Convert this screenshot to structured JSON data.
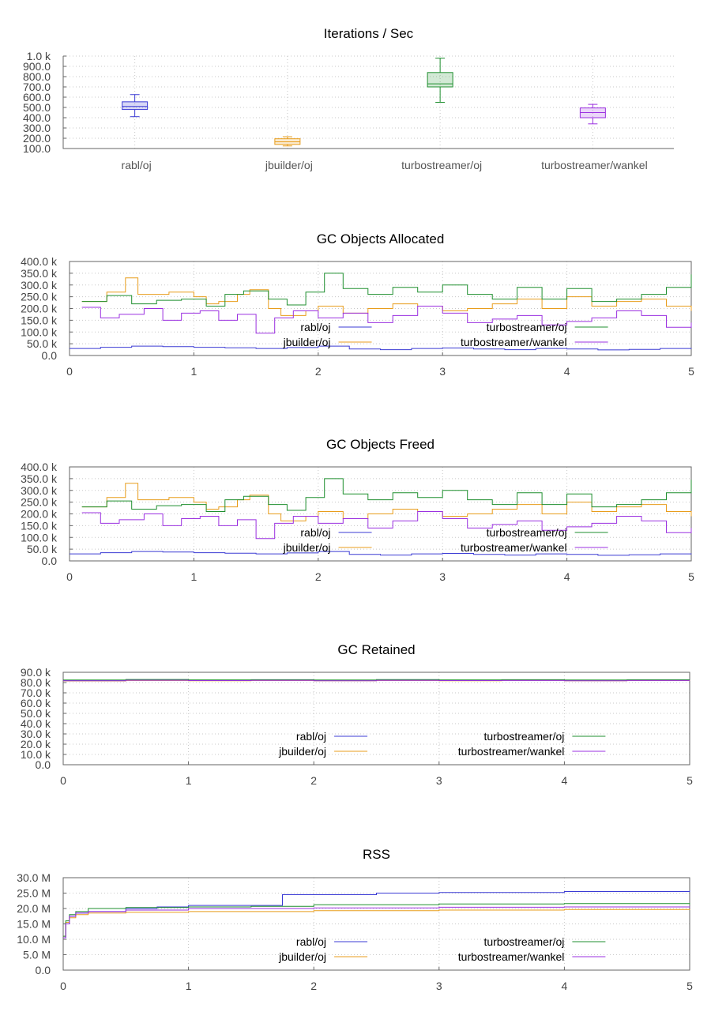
{
  "colors": {
    "rabl/oj": "#3b3bd4",
    "jbuilder/oj": "#e89d1c",
    "turbostreamer/oj": "#1f8f2f",
    "turbostreamer/wankel": "#9b30e0"
  },
  "chart_data": [
    {
      "type": "box",
      "title": "Iterations / Sec",
      "categories": [
        "rabl/oj",
        "jbuilder/oj",
        "turbostreamer/oj",
        "turbostreamer/wankel"
      ],
      "boxes": [
        {
          "name": "rabl/oj",
          "min": 410,
          "q1": 480,
          "median": 510,
          "q3": 555,
          "max": 625
        },
        {
          "name": "jbuilder/oj",
          "min": 125,
          "q1": 140,
          "median": 165,
          "q3": 195,
          "max": 215
        },
        {
          "name": "turbostreamer/oj",
          "min": 550,
          "q1": 700,
          "median": 730,
          "q3": 840,
          "max": 980
        },
        {
          "name": "turbostreamer/wankel",
          "min": 340,
          "q1": 400,
          "median": 450,
          "q3": 495,
          "max": 530
        }
      ],
      "ylim": [
        100,
        1000
      ],
      "yticks": [
        "100.0",
        "200.0",
        "300.0",
        "400.0",
        "500.0",
        "600.0",
        "700.0",
        "800.0",
        "900.0",
        "1.0 k"
      ],
      "ytick_values": [
        100,
        200,
        300,
        400,
        500,
        600,
        700,
        800,
        900,
        1000
      ]
    },
    {
      "type": "line",
      "title": "GC Objects Allocated",
      "xlim": [
        0,
        5
      ],
      "xticks": [
        "0",
        "1",
        "2",
        "3",
        "4",
        "5"
      ],
      "ylim": [
        0,
        400000
      ],
      "yticks": [
        "0.0",
        "50.0 k",
        "100.0 k",
        "150.0 k",
        "200.0 k",
        "250.0 k",
        "300.0 k",
        "350.0 k",
        "400.0 k"
      ],
      "ytick_values": [
        0,
        50000,
        100000,
        150000,
        200000,
        250000,
        300000,
        350000,
        400000
      ],
      "legend": [
        "rabl/oj",
        "turbostreamer/oj",
        "jbuilder/oj",
        "turbostreamer/wankel"
      ],
      "series": [
        {
          "name": "rabl/oj",
          "x": [
            0,
            0.25,
            0.5,
            0.75,
            1,
            1.25,
            1.5,
            1.75,
            2,
            2.25,
            2.5,
            2.75,
            3,
            3.25,
            3.5,
            3.75,
            4,
            4.25,
            4.5,
            4.75,
            5
          ],
          "y": [
            30000,
            35000,
            40000,
            38000,
            35000,
            33000,
            30000,
            34000,
            40000,
            28000,
            25000,
            30000,
            32000,
            28000,
            25000,
            30000,
            28000,
            24000,
            26000,
            30000,
            32000
          ]
        },
        {
          "name": "jbuilder/oj",
          "x": [
            0.1,
            0.3,
            0.45,
            0.55,
            0.8,
            1.0,
            1.1,
            1.2,
            1.35,
            1.45,
            1.6,
            1.7,
            1.9,
            2.0,
            2.2,
            2.4,
            2.6,
            2.8,
            3.0,
            3.2,
            3.4,
            3.6,
            3.8,
            4.0,
            4.2,
            4.4,
            4.6,
            4.8,
            5.0
          ],
          "y": [
            230000,
            270000,
            330000,
            260000,
            270000,
            250000,
            220000,
            230000,
            260000,
            280000,
            200000,
            170000,
            190000,
            210000,
            180000,
            200000,
            220000,
            210000,
            190000,
            200000,
            220000,
            240000,
            200000,
            250000,
            210000,
            230000,
            240000,
            210000,
            190000
          ]
        },
        {
          "name": "turbostreamer/oj",
          "x": [
            0.1,
            0.3,
            0.5,
            0.7,
            0.9,
            1.1,
            1.25,
            1.4,
            1.6,
            1.75,
            1.9,
            2.05,
            2.2,
            2.4,
            2.6,
            2.8,
            3.0,
            3.2,
            3.4,
            3.6,
            3.8,
            4.0,
            4.2,
            4.4,
            4.6,
            4.8,
            5.0
          ],
          "y": [
            230000,
            255000,
            220000,
            235000,
            240000,
            210000,
            260000,
            275000,
            240000,
            215000,
            270000,
            350000,
            285000,
            260000,
            290000,
            270000,
            300000,
            260000,
            240000,
            290000,
            240000,
            285000,
            230000,
            240000,
            260000,
            290000,
            345000
          ]
        },
        {
          "name": "turbostreamer/wankel",
          "x": [
            0.1,
            0.25,
            0.4,
            0.6,
            0.75,
            0.9,
            1.05,
            1.2,
            1.35,
            1.5,
            1.65,
            1.8,
            2.0,
            2.2,
            2.4,
            2.6,
            2.8,
            3.0,
            3.2,
            3.4,
            3.6,
            3.8,
            4.0,
            4.2,
            4.4,
            4.6,
            4.8,
            5.0
          ],
          "y": [
            205000,
            160000,
            175000,
            200000,
            150000,
            180000,
            190000,
            150000,
            175000,
            95000,
            160000,
            190000,
            160000,
            180000,
            140000,
            170000,
            210000,
            180000,
            140000,
            155000,
            170000,
            130000,
            145000,
            160000,
            190000,
            170000,
            120000,
            140000
          ]
        }
      ]
    },
    {
      "type": "line",
      "title": "GC Objects Freed",
      "xlim": [
        0,
        5
      ],
      "xticks": [
        "0",
        "1",
        "2",
        "3",
        "4",
        "5"
      ],
      "ylim": [
        0,
        400000
      ],
      "yticks": [
        "0.0",
        "50.0 k",
        "100.0 k",
        "150.0 k",
        "200.0 k",
        "250.0 k",
        "300.0 k",
        "350.0 k",
        "400.0 k"
      ],
      "ytick_values": [
        0,
        50000,
        100000,
        150000,
        200000,
        250000,
        300000,
        350000,
        400000
      ],
      "legend": [
        "rabl/oj",
        "turbostreamer/oj",
        "jbuilder/oj",
        "turbostreamer/wankel"
      ],
      "series": [
        {
          "name": "rabl/oj",
          "x": [
            0,
            0.25,
            0.5,
            0.75,
            1,
            1.25,
            1.5,
            1.75,
            2,
            2.25,
            2.5,
            2.75,
            3,
            3.25,
            3.5,
            3.75,
            4,
            4.25,
            4.5,
            4.75,
            5
          ],
          "y": [
            30000,
            35000,
            40000,
            38000,
            35000,
            33000,
            30000,
            34000,
            40000,
            28000,
            25000,
            30000,
            32000,
            28000,
            25000,
            30000,
            28000,
            24000,
            26000,
            30000,
            32000
          ]
        },
        {
          "name": "jbuilder/oj",
          "x": [
            0.1,
            0.3,
            0.45,
            0.55,
            0.8,
            1.0,
            1.1,
            1.2,
            1.35,
            1.45,
            1.6,
            1.7,
            1.9,
            2.0,
            2.2,
            2.4,
            2.6,
            2.8,
            3.0,
            3.2,
            3.4,
            3.6,
            3.8,
            4.0,
            4.2,
            4.4,
            4.6,
            4.8,
            5.0
          ],
          "y": [
            230000,
            270000,
            330000,
            260000,
            270000,
            250000,
            220000,
            230000,
            260000,
            280000,
            200000,
            170000,
            190000,
            210000,
            180000,
            200000,
            220000,
            210000,
            190000,
            200000,
            220000,
            240000,
            200000,
            250000,
            210000,
            230000,
            240000,
            210000,
            190000
          ]
        },
        {
          "name": "turbostreamer/oj",
          "x": [
            0.1,
            0.3,
            0.5,
            0.7,
            0.9,
            1.1,
            1.25,
            1.4,
            1.6,
            1.75,
            1.9,
            2.05,
            2.2,
            2.4,
            2.6,
            2.8,
            3.0,
            3.2,
            3.4,
            3.6,
            3.8,
            4.0,
            4.2,
            4.4,
            4.6,
            4.8,
            5.0
          ],
          "y": [
            230000,
            255000,
            220000,
            235000,
            240000,
            210000,
            260000,
            275000,
            240000,
            215000,
            270000,
            350000,
            285000,
            260000,
            290000,
            270000,
            300000,
            260000,
            240000,
            290000,
            240000,
            285000,
            230000,
            240000,
            260000,
            290000,
            345000
          ]
        },
        {
          "name": "turbostreamer/wankel",
          "x": [
            0.1,
            0.25,
            0.4,
            0.6,
            0.75,
            0.9,
            1.05,
            1.2,
            1.35,
            1.5,
            1.65,
            1.8,
            2.0,
            2.2,
            2.4,
            2.6,
            2.8,
            3.0,
            3.2,
            3.4,
            3.6,
            3.8,
            4.0,
            4.2,
            4.4,
            4.6,
            4.8,
            5.0
          ],
          "y": [
            205000,
            160000,
            175000,
            200000,
            150000,
            180000,
            190000,
            150000,
            175000,
            95000,
            160000,
            190000,
            160000,
            180000,
            140000,
            170000,
            210000,
            180000,
            140000,
            155000,
            170000,
            130000,
            145000,
            160000,
            190000,
            170000,
            120000,
            140000
          ]
        }
      ]
    },
    {
      "type": "line",
      "title": "GC Retained",
      "xlim": [
        0,
        5
      ],
      "xticks": [
        "0",
        "1",
        "2",
        "3",
        "4",
        "5"
      ],
      "ylim": [
        0,
        90000
      ],
      "yticks": [
        "0.0",
        "10.0 k",
        "20.0 k",
        "30.0 k",
        "40.0 k",
        "50.0 k",
        "60.0 k",
        "70.0 k",
        "80.0 k",
        "90.0 k"
      ],
      "ytick_values": [
        0,
        10000,
        20000,
        30000,
        40000,
        50000,
        60000,
        70000,
        80000,
        90000
      ],
      "legend": [
        "rabl/oj",
        "turbostreamer/oj",
        "jbuilder/oj",
        "turbostreamer/wankel"
      ],
      "series": [
        {
          "name": "rabl/oj",
          "x": [
            0,
            0.5,
            1,
            1.5,
            2,
            2.5,
            3,
            3.5,
            4,
            4.5,
            5
          ],
          "y": [
            82000,
            82500,
            82000,
            82300,
            82000,
            82400,
            82100,
            82300,
            82000,
            82200,
            82100
          ]
        },
        {
          "name": "jbuilder/oj",
          "x": [
            0,
            0.5,
            1,
            1.5,
            2,
            2.5,
            3,
            3.5,
            4,
            4.5,
            5
          ],
          "y": [
            81500,
            82000,
            81800,
            82000,
            81700,
            82000,
            81800,
            82100,
            81700,
            82000,
            82500
          ]
        },
        {
          "name": "turbostreamer/oj",
          "x": [
            0,
            0.5,
            1,
            1.5,
            2,
            2.5,
            3,
            3.5,
            4,
            4.5,
            5
          ],
          "y": [
            82500,
            83000,
            82600,
            82800,
            82500,
            82900,
            82600,
            82800,
            82500,
            82700,
            82600
          ]
        },
        {
          "name": "turbostreamer/wankel",
          "x": [
            0,
            0.5,
            1,
            1.5,
            2,
            2.5,
            3,
            3.5,
            4,
            4.5,
            5
          ],
          "y": [
            81800,
            82200,
            81900,
            82100,
            81800,
            82100,
            81900,
            82000,
            81800,
            82000,
            81900
          ]
        }
      ]
    },
    {
      "type": "line",
      "title": "RSS",
      "xlim": [
        0,
        5
      ],
      "xticks": [
        "0",
        "1",
        "2",
        "3",
        "4",
        "5"
      ],
      "ylim": [
        0,
        30000000
      ],
      "yticks": [
        "0.0",
        "5.0 M",
        "10.0 M",
        "15.0 M",
        "20.0 M",
        "25.0 M",
        "30.0 M"
      ],
      "ytick_values": [
        0,
        5000000,
        10000000,
        15000000,
        20000000,
        25000000,
        30000000
      ],
      "legend": [
        "rabl/oj",
        "turbostreamer/oj",
        "jbuilder/oj",
        "turbostreamer/wankel"
      ],
      "series": [
        {
          "name": "rabl/oj",
          "x": [
            0,
            0.02,
            0.05,
            0.1,
            0.2,
            0.5,
            0.75,
            1.0,
            1.7,
            1.75,
            2.5,
            3.0,
            4.0,
            5.0
          ],
          "y": [
            10500000,
            15000000,
            17500000,
            18500000,
            19000000,
            20000000,
            20500000,
            21000000,
            21000000,
            24500000,
            25000000,
            25200000,
            25500000,
            25800000
          ]
        },
        {
          "name": "jbuilder/oj",
          "x": [
            0,
            0.02,
            0.05,
            0.1,
            0.2,
            0.5,
            1.0,
            2.0,
            3.0,
            4.0,
            5.0
          ],
          "y": [
            11000000,
            15500000,
            17000000,
            18000000,
            18500000,
            18800000,
            19000000,
            19300000,
            19500000,
            19700000,
            19800000
          ]
        },
        {
          "name": "turbostreamer/oj",
          "x": [
            0,
            0.02,
            0.05,
            0.1,
            0.2,
            0.5,
            1.0,
            1.5,
            2.0,
            3.0,
            4.0,
            5.0
          ],
          "y": [
            11000000,
            16000000,
            18000000,
            19000000,
            20000000,
            20300000,
            20500000,
            20700000,
            21200000,
            21500000,
            21600000,
            21800000
          ]
        },
        {
          "name": "turbostreamer/wankel",
          "x": [
            0,
            0.02,
            0.05,
            0.1,
            0.2,
            0.5,
            1.0,
            2.0,
            3.0,
            4.0,
            5.0
          ],
          "y": [
            10500000,
            15000000,
            17500000,
            18500000,
            19000000,
            19500000,
            20000000,
            20200000,
            20400000,
            20500000,
            20600000
          ]
        }
      ]
    }
  ]
}
